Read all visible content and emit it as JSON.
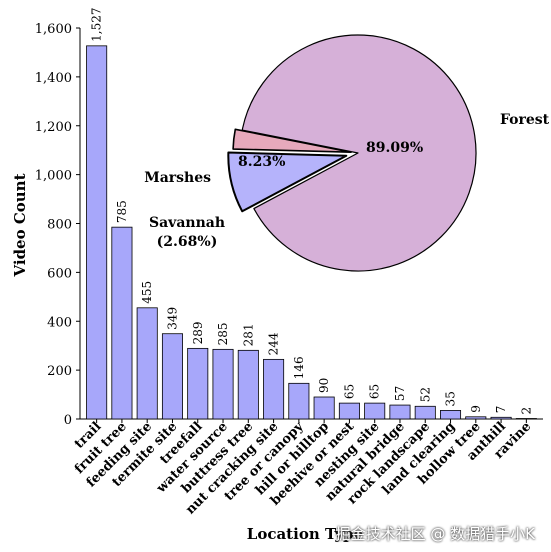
{
  "chart_data": [
    {
      "type": "bar",
      "xlabel": "Location Type",
      "ylabel": "Video Count",
      "ylim": [
        0,
        1600
      ],
      "yticks": [
        0,
        200,
        400,
        600,
        800,
        1000,
        1200,
        1400,
        1600
      ],
      "ytick_labels": [
        "0",
        "200",
        "400",
        "600",
        "800",
        "1,000",
        "1,200",
        "1,400",
        "1,600"
      ],
      "categories": [
        "trail",
        "fruit tree",
        "feeding site",
        "termite site",
        "treefall",
        "water source",
        "buttress tree",
        "nut cracking site",
        "tree or canopy",
        "hill or hilltop",
        "beehive or nest",
        "nesting site",
        "natural bridge",
        "rock landscape",
        "land clearing",
        "hollow tree",
        "anthill",
        "ravine"
      ],
      "values": [
        1527,
        785,
        455,
        349,
        289,
        285,
        281,
        244,
        146,
        90,
        65,
        65,
        57,
        52,
        35,
        9,
        7,
        2
      ],
      "value_labels": [
        "1,527",
        "785",
        "455",
        "349",
        "289",
        "285",
        "281",
        "244",
        "146",
        "90",
        "65",
        "65",
        "57",
        "52",
        "35",
        "9",
        "7",
        "2"
      ],
      "bar_color": "#a7a7fa"
    },
    {
      "type": "pie",
      "labels": [
        "Forest",
        "Marshes",
        "Savannah"
      ],
      "values": [
        89.09,
        8.23,
        2.68
      ],
      "value_labels": [
        "89.09%",
        "8.23%",
        "(2.68%)"
      ],
      "colors": [
        "#d6b0d8",
        "#b5b3fb",
        "#e7a9bc"
      ],
      "exploded": [
        "Marshes",
        "Savannah"
      ]
    }
  ],
  "watermark": "掘金技术社区 @ 数据猎手小K"
}
